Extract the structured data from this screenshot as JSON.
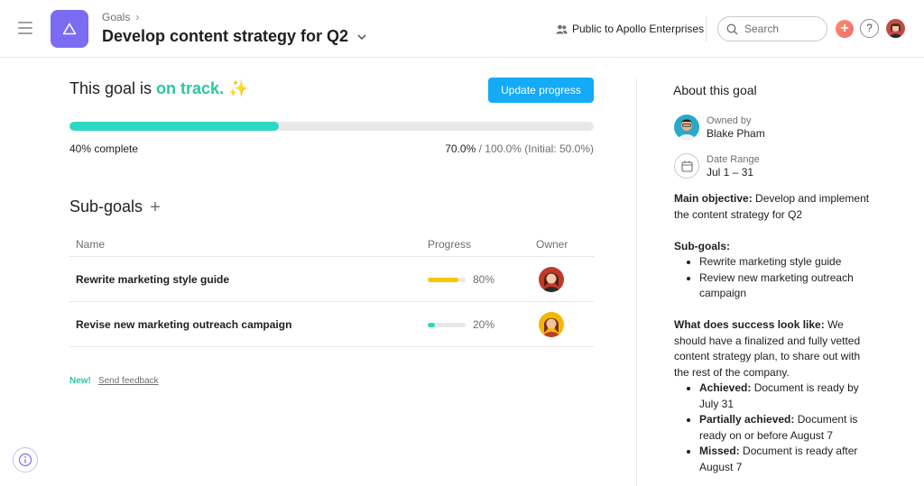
{
  "breadcrumb": {
    "parent": "Goals"
  },
  "goal": {
    "title": "Develop content strategy for Q2"
  },
  "privacy": {
    "label": "Public to Apollo Enterprises"
  },
  "search": {
    "placeholder": "Search"
  },
  "status": {
    "prefix": "This goal is ",
    "status": "on track.",
    "emoji": "✨"
  },
  "update_button": "Update progress",
  "progress": {
    "fraction": 0.4,
    "complete_label": "40% complete",
    "current": "70.0%",
    "rest": " / 100.0% (Initial: 50.0%)"
  },
  "subgoals": {
    "heading": "Sub-goals",
    "add_icon": "+",
    "columns": {
      "name": "Name",
      "progress": "Progress",
      "owner": "Owner"
    },
    "rows": [
      {
        "name": "Rewrite marketing style guide",
        "progress": 0.8,
        "pct": "80%",
        "bar_color": "#f8c700",
        "owner_icon": "avatar-woman-red"
      },
      {
        "name": "Revise new marketing outreach campaign",
        "progress": 0.2,
        "pct": "20%",
        "bar_color": "#2ed9c3",
        "owner_icon": "avatar-woman-yellow"
      }
    ]
  },
  "feedback": {
    "new": "New!",
    "send": "Send feedback"
  },
  "about": {
    "heading": "About this goal",
    "owned_by_label": "Owned by",
    "owner_name": "Blake Pham",
    "date_range_label": "Date Range",
    "date_range": "Jul 1 – 31",
    "main_objective_label": "Main objective:",
    "main_objective": " Develop and implement the content strategy for Q2",
    "subgoals_label": "Sub-goals:",
    "subgoals": [
      "Rewrite marketing style guide",
      "Review new marketing outreach campaign"
    ],
    "success_label": "What does success look like:",
    "success": " We should have a finalized and fully vetted content strategy plan, to share out with the rest of the company.",
    "outcomes": [
      {
        "label": "Achieved:",
        "text": " Document is ready by July 31"
      },
      {
        "label": "Partially achieved:",
        "text": " Document is ready on or before August 7"
      },
      {
        "label": "Missed:",
        "text": " Document is ready after August 7"
      }
    ]
  },
  "colors": {
    "accent": "#14aaf5",
    "on_track": "#2bc6a0",
    "goal_tile": "#7c6cf2",
    "progress": "#2ed9c3"
  }
}
